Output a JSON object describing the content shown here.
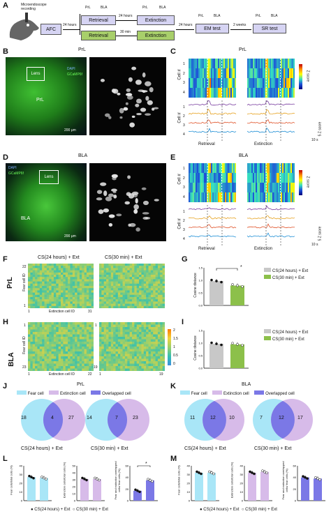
{
  "panel_letters": {
    "A": "A",
    "B": "B",
    "C": "C",
    "D": "D",
    "E": "E",
    "F": "F",
    "G": "G",
    "H": "H",
    "I": "I",
    "J": "J",
    "K": "K",
    "L": "L",
    "M": "M"
  },
  "panelA": {
    "mouse_label": "Microendoscope\nrecording",
    "afc": "AFC",
    "arrow1": "24 hours",
    "retrieval_top": "Retrieval",
    "arrow_mid_top": "24 hours",
    "extinction_top": "Extinction",
    "retrieval_bottom": "Retrieval",
    "arrow_mid_bottom": "30 min",
    "extinction_bottom": "Extinction",
    "arrow2": "24 hours",
    "em_test": "EM test",
    "arrow3": "2 weeks",
    "sr_test": "SR test",
    "icon_prl": "PrL",
    "icon_bla": "BLA"
  },
  "panelB": {
    "title": "PrL",
    "dapi": "DAPI",
    "gcamp": "GCaMP6f",
    "lens": "Lens",
    "region": "PrL",
    "scale": "200 μm"
  },
  "panelD": {
    "title": "BLA",
    "dapi": "DAPI",
    "gcamp": "GCaMP6f",
    "lens": "Lens",
    "region": "BLA",
    "scale": "200 μm"
  },
  "panelC": {
    "title": "PrL",
    "ylabel": "Cell #",
    "cells": [
      "1",
      "2",
      "3",
      "4"
    ],
    "xlabel_left": "Retrieval",
    "xlabel_right": "Extinction",
    "colorbar": "Z score",
    "scale_y": "5 Z score",
    "scale_x": "10 s"
  },
  "panelE": {
    "title": "BLA",
    "ylabel": "Cell #",
    "cells": [
      "1",
      "2",
      "3",
      "4"
    ],
    "xlabel_left": "Retrieval",
    "xlabel_right": "Extinction",
    "colorbar": "Z score",
    "scale_y": "5 Z score",
    "scale_x": "10 s"
  },
  "panelF": {
    "row": "PrL",
    "title_left": "CS(24 hours) + Ext",
    "title_right": "CS(30 min) + Ext",
    "ylabel": "Fear cell ID",
    "xlabel": "Extinction cell ID",
    "y_bottom": "1",
    "y_top": "22",
    "x_left_start": "1",
    "x_left_end": "31"
  },
  "panelH": {
    "row": "BLA",
    "ylabel": "Fear cell ID",
    "xlabel": "Extinction cell ID",
    "left_y_bottom": "1",
    "left_y_top": "23",
    "left_x_start": "1",
    "left_x_end": "22",
    "right_y_bottom": "1",
    "right_y_top": "19",
    "right_x_start": "1",
    "right_x_end": "19",
    "cb_ticks": [
      "2",
      "1.5",
      "1",
      "0.5",
      "0"
    ]
  },
  "panelG": {
    "ylabel": "Cosine distance",
    "ticks": [
      "0.0",
      "0.5",
      "1.0",
      "1.5"
    ],
    "legend": [
      "CS(24 hours) + Ext",
      "CS(30 min) + Ext"
    ],
    "sig": "*"
  },
  "panelI": {
    "ylabel": "Cosine distance",
    "ticks": [
      "0.0",
      "0.5",
      "1.0",
      "1.5"
    ],
    "legend": [
      "CS(24 hours) + Ext",
      "CS(30 min) + Ext"
    ]
  },
  "panelJ": {
    "title": "PrL",
    "legend": [
      "Fear cell",
      "Extinction cell",
      "Overlapped cell"
    ],
    "v1": {
      "a": "18",
      "ab": "4",
      "b": "27",
      "label": "CS(24 hours) + Ext"
    },
    "v2": {
      "a": "14",
      "ab": "7",
      "b": "23",
      "label": "CS(30 min) + Ext"
    }
  },
  "panelK": {
    "title": "BLA",
    "legend": [
      "Fear cell",
      "Extinction cell",
      "Overlapped cell"
    ],
    "v1": {
      "a": "11",
      "ab": "12",
      "b": "10",
      "label": "CS(24 hours) + Ext"
    },
    "v2": {
      "a": "7",
      "ab": "12",
      "b": "17",
      "label": "CS(30 min) + Ext"
    }
  },
  "panelL": {
    "ylabels": [
      "Fear cells/total cells (%)",
      "Extinction cells/total cells (%)",
      "Fear and extinction overlapped cells/ fear cells (%)"
    ],
    "ticks1": [
      "40",
      "30",
      "20",
      "10",
      "0"
    ],
    "ticks2": [
      "50",
      "40",
      "30",
      "20",
      "10",
      "0"
    ],
    "ticks3": [
      "60",
      "40",
      "20",
      "0"
    ],
    "sig": "*",
    "legend": [
      "CS(24 hours) + Ext",
      "CS(30 min) + Ext"
    ]
  },
  "panelM": {
    "ylabels": [
      "Fear cells/total cells (%)",
      "Extinction cells/total cells (%)",
      "Fear and extinction overlapped cells/ fear cells (%)"
    ],
    "ticks1": [
      "40",
      "30",
      "20",
      "10",
      "0"
    ],
    "ticks2": [
      "40",
      "30",
      "20",
      "10",
      "0"
    ],
    "ticks3": [
      "60",
      "40",
      "20",
      "0"
    ],
    "legend": [
      "CS(24 hours) + Ext",
      "CS(30 min) + Ext"
    ]
  },
  "colors": {
    "gray": "#c8c8c8",
    "green": "#8cc04a",
    "cyan": "#7fd6ef",
    "purple": "#c9a6e0",
    "overlap": "#7b78e6",
    "light_blue": "#a9e6f7",
    "light_purple": "#d7bbe9"
  },
  "chart_data": [
    {
      "type": "bar",
      "panel": "G",
      "categories": [
        "CS(24 hours) + Ext",
        "CS(30 min) + Ext"
      ],
      "values": [
        0.97,
        0.79
      ],
      "ylabel": "Cosine distance",
      "ylim": [
        0,
        1.5
      ]
    },
    {
      "type": "bar",
      "panel": "I",
      "categories": [
        "CS(24 hours) + Ext",
        "CS(30 min) + Ext"
      ],
      "values": [
        0.97,
        0.95
      ],
      "ylabel": "Cosine distance",
      "ylim": [
        0,
        1.5
      ]
    },
    {
      "type": "bar",
      "panel": "L1",
      "categories": [
        "CS(24 hours) + Ext",
        "CS(30 min) + Ext"
      ],
      "values": [
        27,
        26
      ],
      "ylim": [
        0,
        40
      ]
    },
    {
      "type": "bar",
      "panel": "L2",
      "categories": [
        "CS(24 hours) + Ext",
        "CS(30 min) + Ext"
      ],
      "values": [
        31,
        31
      ],
      "ylim": [
        0,
        50
      ]
    },
    {
      "type": "bar",
      "panel": "L3",
      "categories": [
        "CS(24 hours) + Ext",
        "CS(30 min) + Ext"
      ],
      "values": [
        17,
        35
      ],
      "ylim": [
        0,
        60
      ]
    },
    {
      "type": "bar",
      "panel": "M1",
      "categories": [
        "CS(24 hours) + Ext",
        "CS(30 min) + Ext"
      ],
      "values": [
        32,
        32
      ],
      "ylim": [
        0,
        40
      ]
    },
    {
      "type": "bar",
      "panel": "M2",
      "categories": [
        "CS(24 hours) + Ext",
        "CS(30 min) + Ext"
      ],
      "values": [
        32,
        33
      ],
      "ylim": [
        0,
        40
      ]
    },
    {
      "type": "bar",
      "panel": "M3",
      "categories": [
        "CS(24 hours) + Ext",
        "CS(30 min) + Ext"
      ],
      "values": [
        40,
        38
      ],
      "ylim": [
        0,
        60
      ]
    }
  ]
}
